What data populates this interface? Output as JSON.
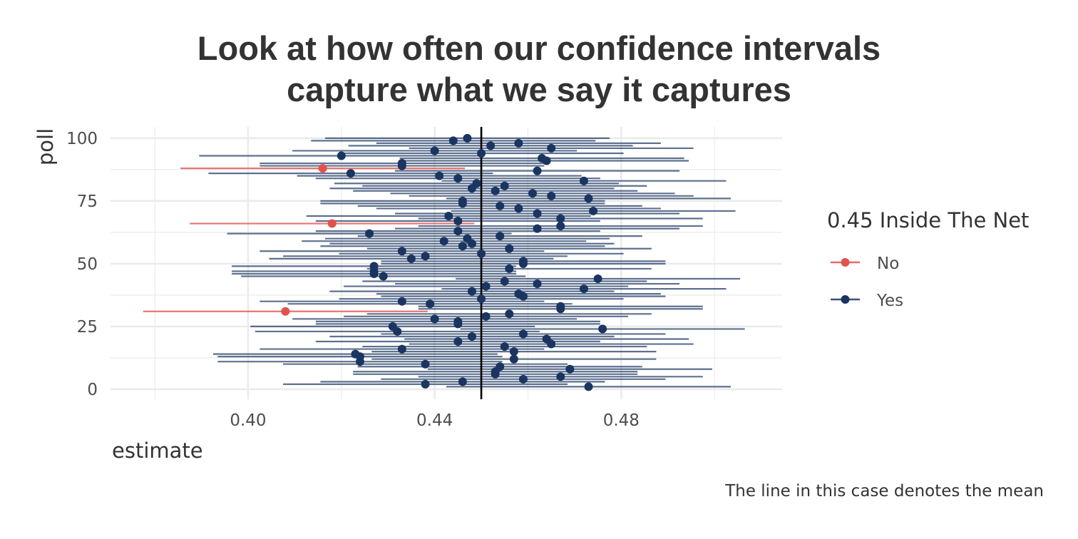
{
  "title": {
    "line1": "Look at how often our confidence intervals",
    "line2": "capture what we say it captures"
  },
  "caption": "The line in this case denotes the mean",
  "legend": {
    "title": "0.45 Inside The Net",
    "items": [
      {
        "label": "No",
        "color": "#e0534c"
      },
      {
        "label": "Yes",
        "color": "#1a3560"
      }
    ]
  },
  "colors": {
    "no": "#e0534c",
    "yes": "#1a3560",
    "grid": "#ebebeb",
    "mean_line": "#000000"
  },
  "chart_data": {
    "type": "scatter",
    "xlabel": "estimate",
    "ylabel": "poll",
    "x_ticks": [
      "0.40",
      "0.44",
      "0.48"
    ],
    "y_ticks": [
      "0",
      "25",
      "50",
      "75",
      "100"
    ],
    "xlim": [
      0.3705,
      0.5145
    ],
    "ylim": [
      -4,
      104.5
    ],
    "reference_line": 0.45,
    "grid": true,
    "legend_position": "right",
    "series": [
      {
        "name": "No",
        "polls": [
          31,
          66,
          88
        ],
        "estimates": [
          0.408,
          0.418,
          0.416
        ],
        "lower": [
          0.3775,
          0.3875,
          0.3855
        ],
        "upper": [
          0.4385,
          0.4485,
          0.4465
        ]
      },
      {
        "name": "Yes",
        "polls": [
          1,
          2,
          3,
          4,
          5,
          6,
          7,
          8,
          9,
          10,
          11,
          12,
          13,
          14,
          15,
          16,
          17,
          18,
          19,
          20,
          21,
          22,
          23,
          24,
          25,
          26,
          27,
          28,
          29,
          30,
          32,
          33,
          34,
          35,
          36,
          37,
          38,
          39,
          40,
          41,
          42,
          43,
          44,
          45,
          46,
          47,
          48,
          49,
          50,
          51,
          52,
          53,
          54,
          55,
          56,
          57,
          58,
          59,
          60,
          61,
          62,
          63,
          64,
          65,
          67,
          68,
          69,
          70,
          71,
          72,
          73,
          74,
          75,
          76,
          77,
          78,
          79,
          80,
          81,
          82,
          83,
          84,
          85,
          86,
          87,
          89,
          90,
          91,
          92,
          93,
          94,
          95,
          96,
          97,
          98,
          99,
          100
        ],
        "estimates": [
          0.473,
          0.438,
          0.446,
          0.459,
          0.467,
          0.453,
          0.453,
          0.469,
          0.454,
          0.438,
          0.424,
          0.457,
          0.424,
          0.423,
          0.457,
          0.433,
          0.455,
          0.465,
          0.445,
          0.464,
          0.448,
          0.459,
          0.432,
          0.476,
          0.431,
          0.445,
          0.445,
          0.44,
          0.451,
          0.456,
          0.467,
          0.467,
          0.439,
          0.433,
          0.45,
          0.459,
          0.458,
          0.448,
          0.472,
          0.451,
          0.462,
          0.455,
          0.475,
          0.429,
          0.427,
          0.427,
          0.456,
          0.427,
          0.459,
          0.459,
          0.435,
          0.438,
          0.45,
          0.433,
          0.456,
          0.446,
          0.448,
          0.442,
          0.447,
          0.454,
          0.426,
          0.445,
          0.462,
          0.467,
          0.445,
          0.467,
          0.443,
          0.462,
          0.474,
          0.458,
          0.454,
          0.446,
          0.446,
          0.473,
          0.465,
          0.461,
          0.453,
          0.448,
          0.455,
          0.449,
          0.472,
          0.445,
          0.441,
          0.422,
          0.462,
          0.433,
          0.433,
          0.464,
          0.463,
          0.42,
          0.45,
          0.44,
          0.465,
          0.452,
          0.458,
          0.444,
          0.447
        ],
        "lower": [
          0.4425,
          0.4075,
          0.4155,
          0.4285,
          0.4365,
          0.4225,
          0.4225,
          0.4385,
          0.4235,
          0.4075,
          0.3935,
          0.4265,
          0.3935,
          0.3925,
          0.4265,
          0.4025,
          0.4245,
          0.4345,
          0.4145,
          0.4335,
          0.4175,
          0.4285,
          0.4015,
          0.4455,
          0.4005,
          0.4145,
          0.4145,
          0.4095,
          0.4205,
          0.4255,
          0.4365,
          0.4365,
          0.4085,
          0.4025,
          0.4195,
          0.4285,
          0.4275,
          0.4175,
          0.4415,
          0.4205,
          0.4315,
          0.4245,
          0.4445,
          0.3985,
          0.3965,
          0.3965,
          0.4255,
          0.3965,
          0.4285,
          0.4285,
          0.4045,
          0.4075,
          0.4195,
          0.4025,
          0.4255,
          0.4155,
          0.4175,
          0.4115,
          0.4165,
          0.4235,
          0.3955,
          0.4145,
          0.4315,
          0.4365,
          0.4145,
          0.4365,
          0.4125,
          0.4315,
          0.4435,
          0.4275,
          0.4235,
          0.4155,
          0.4155,
          0.4425,
          0.4345,
          0.4305,
          0.4225,
          0.4175,
          0.4245,
          0.4185,
          0.4415,
          0.4145,
          0.4105,
          0.3915,
          0.4315,
          0.4025,
          0.4025,
          0.4335,
          0.4325,
          0.3895,
          0.4195,
          0.4095,
          0.4345,
          0.4215,
          0.4275,
          0.4135,
          0.4165
        ],
        "upper": [
          0.5035,
          0.4685,
          0.4765,
          0.4895,
          0.4975,
          0.4835,
          0.4835,
          0.4995,
          0.4845,
          0.4685,
          0.4545,
          0.4875,
          0.4545,
          0.4535,
          0.4875,
          0.4635,
          0.4855,
          0.4955,
          0.4755,
          0.4945,
          0.4785,
          0.4895,
          0.4625,
          0.5065,
          0.4615,
          0.4755,
          0.4755,
          0.4705,
          0.4815,
          0.4865,
          0.4975,
          0.4975,
          0.4695,
          0.4635,
          0.4805,
          0.4895,
          0.4885,
          0.4785,
          0.5025,
          0.4815,
          0.4925,
          0.4855,
          0.5055,
          0.4595,
          0.4575,
          0.4575,
          0.4865,
          0.4575,
          0.4895,
          0.4895,
          0.4655,
          0.4685,
          0.4805,
          0.4635,
          0.4865,
          0.4765,
          0.4785,
          0.4725,
          0.4775,
          0.4845,
          0.4565,
          0.4755,
          0.4925,
          0.4975,
          0.4755,
          0.4975,
          0.4735,
          0.4925,
          0.5045,
          0.4885,
          0.4845,
          0.4765,
          0.4765,
          0.5035,
          0.4955,
          0.4915,
          0.4835,
          0.4785,
          0.4855,
          0.4795,
          0.5025,
          0.4755,
          0.4715,
          0.4525,
          0.4925,
          0.4635,
          0.4635,
          0.4945,
          0.4935,
          0.4505,
          0.4805,
          0.4705,
          0.4955,
          0.4825,
          0.4885,
          0.4745,
          0.4775
        ]
      }
    ]
  }
}
